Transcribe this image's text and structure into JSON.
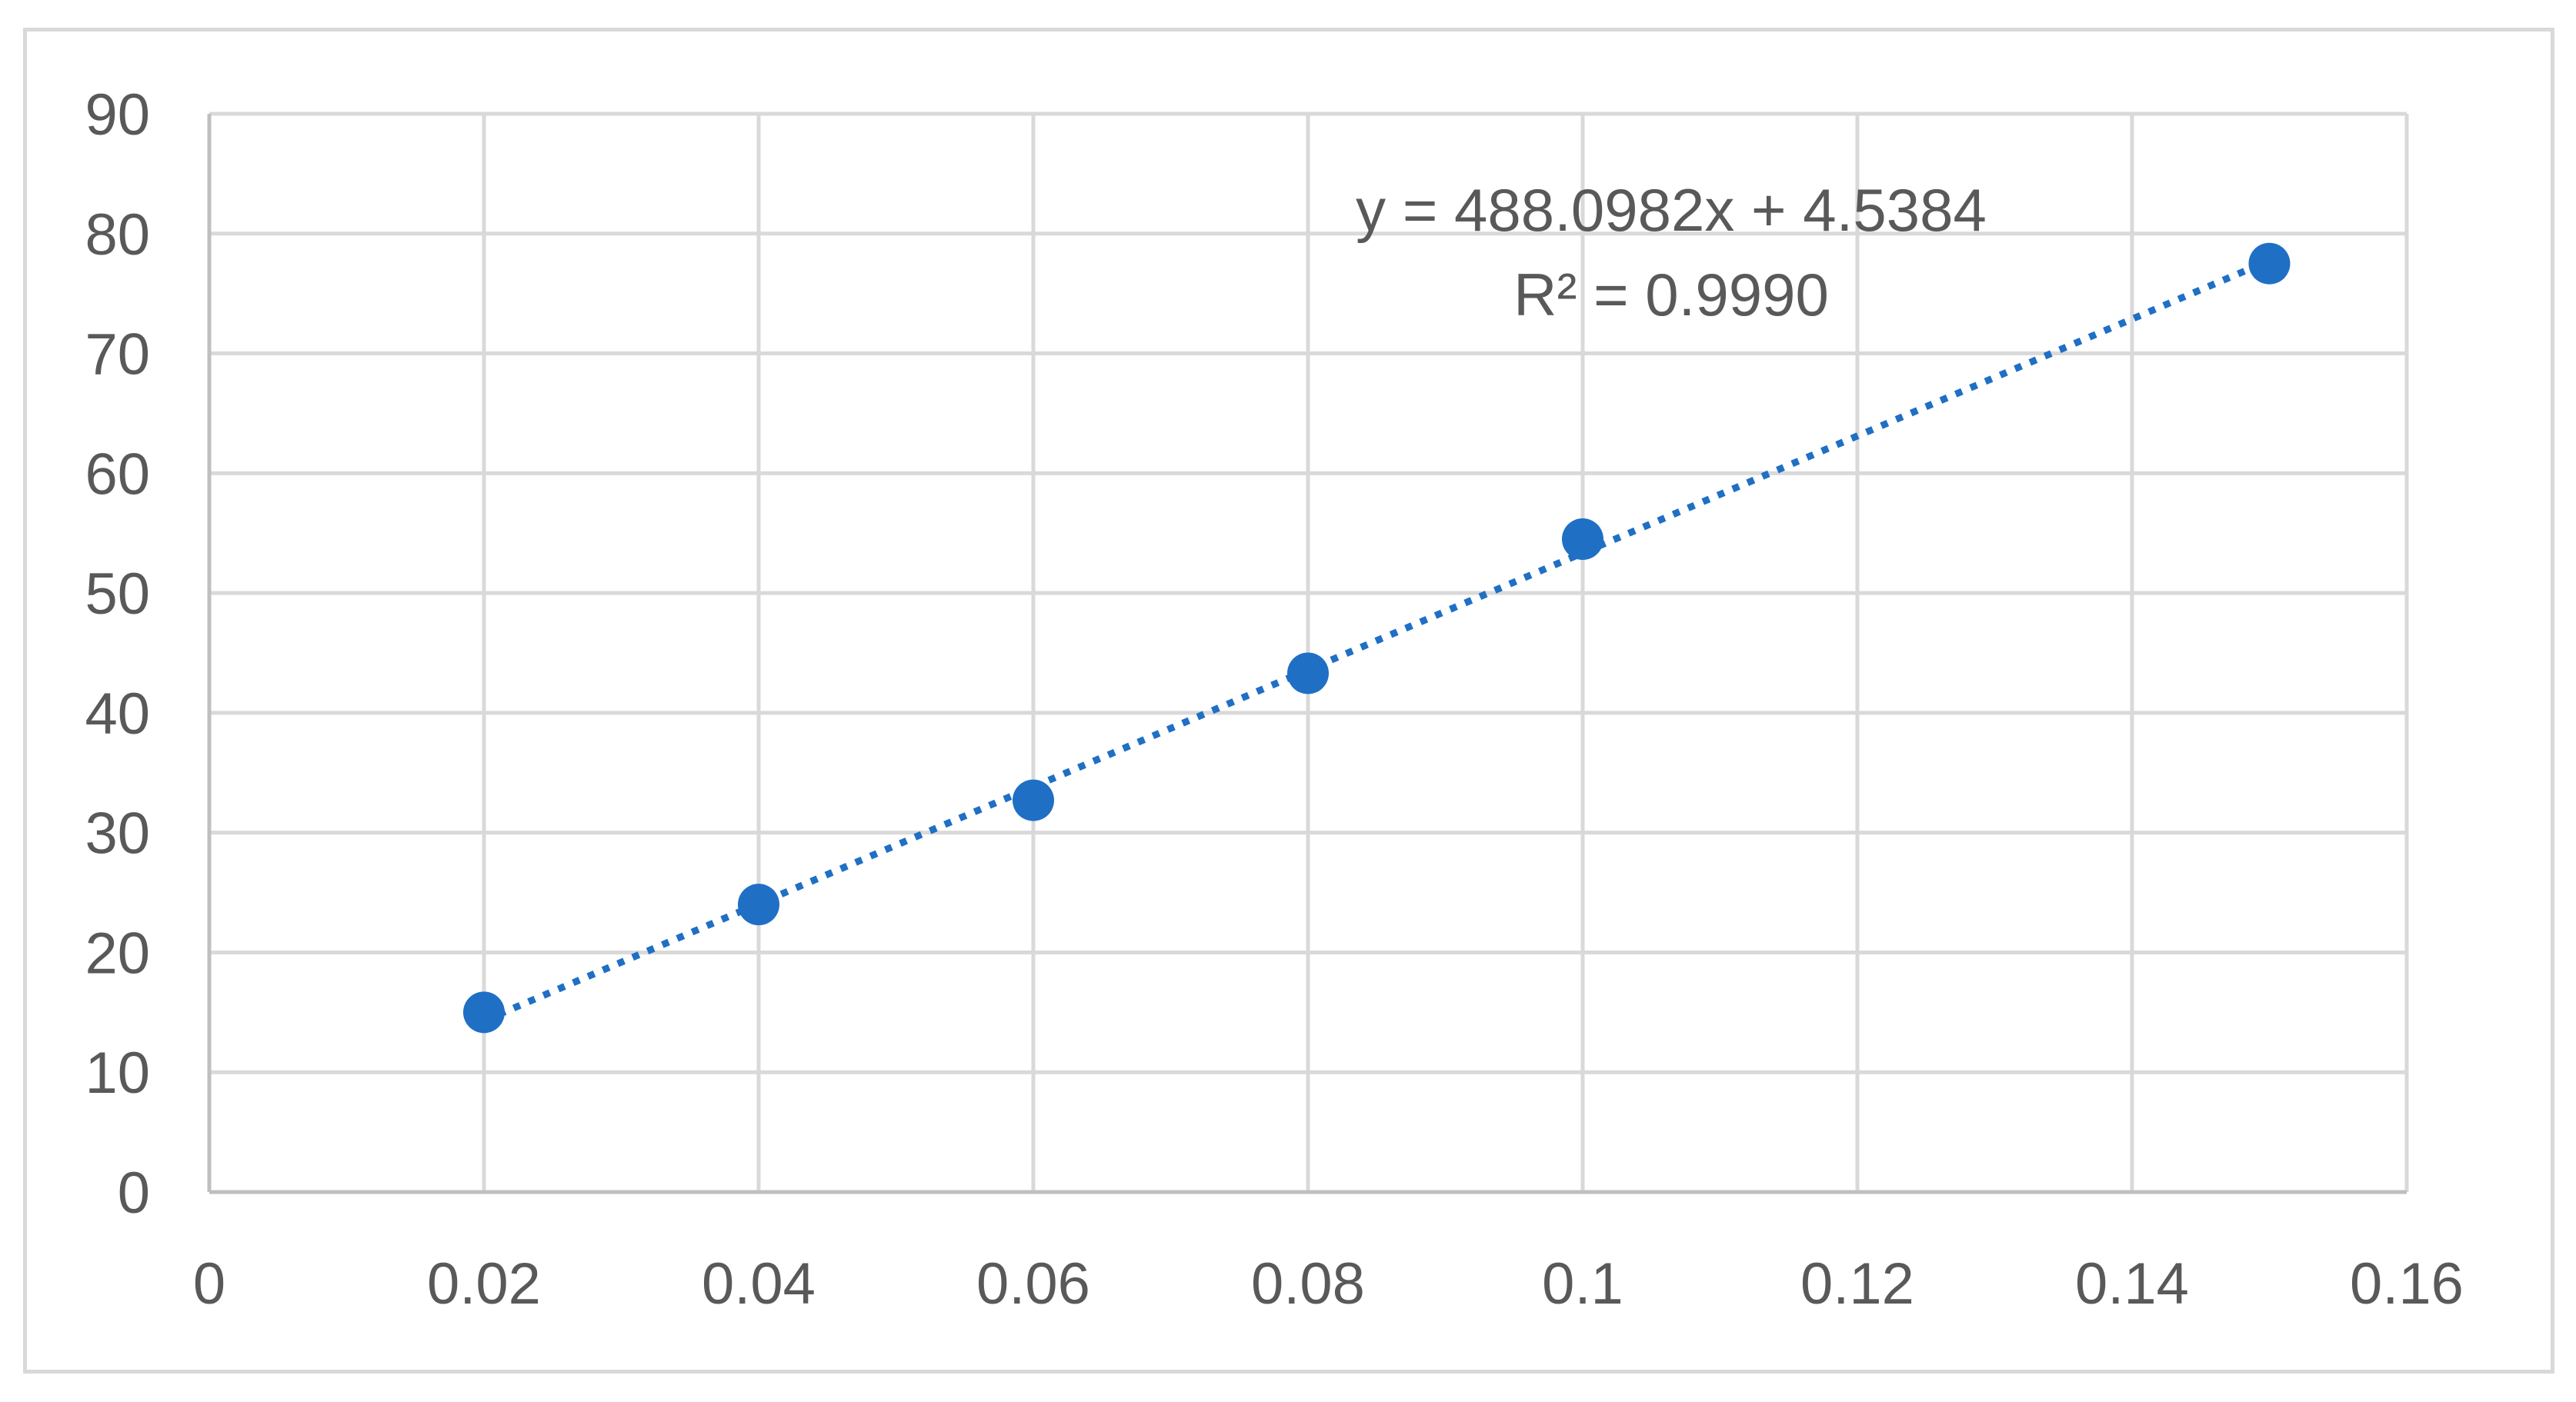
{
  "chart_data": {
    "type": "scatter",
    "title": "",
    "xlabel": "",
    "ylabel": "",
    "xlim": [
      0,
      0.16
    ],
    "ylim": [
      0,
      90
    ],
    "x_ticks": [
      0,
      0.02,
      0.04,
      0.06,
      0.08,
      0.1,
      0.12,
      0.14,
      0.16
    ],
    "x_tick_labels": [
      "0",
      "0.02",
      "0.04",
      "0.06",
      "0.08",
      "0.1",
      "0.12",
      "0.14",
      "0.16"
    ],
    "y_ticks": [
      0,
      10,
      20,
      30,
      40,
      50,
      60,
      70,
      80,
      90
    ],
    "y_tick_labels": [
      "0",
      "10",
      "20",
      "30",
      "40",
      "50",
      "60",
      "70",
      "80",
      "90"
    ],
    "grid": true,
    "legend": "none",
    "series": [
      {
        "color": "#1f6fc5",
        "points": [
          {
            "x": 0.02,
            "y": 15.0
          },
          {
            "x": 0.04,
            "y": 24.0
          },
          {
            "x": 0.06,
            "y": 32.7
          },
          {
            "x": 0.08,
            "y": 43.3
          },
          {
            "x": 0.1,
            "y": 54.5
          },
          {
            "x": 0.15,
            "y": 77.5
          }
        ]
      }
    ],
    "trendline": {
      "type": "linear",
      "style": "dotted",
      "color": "#1f6fc5",
      "slope": 488.0982,
      "intercept": 4.5384,
      "x_range": [
        0.02,
        0.15
      ],
      "equation_label": "y = 488.0982x + 4.5384",
      "r2_label": "R² = 0.9990"
    }
  },
  "colors": {
    "grid": "#d9d9d9",
    "axis": "#bfbfbf",
    "text": "#595959",
    "marker": "#1f6fc5"
  }
}
